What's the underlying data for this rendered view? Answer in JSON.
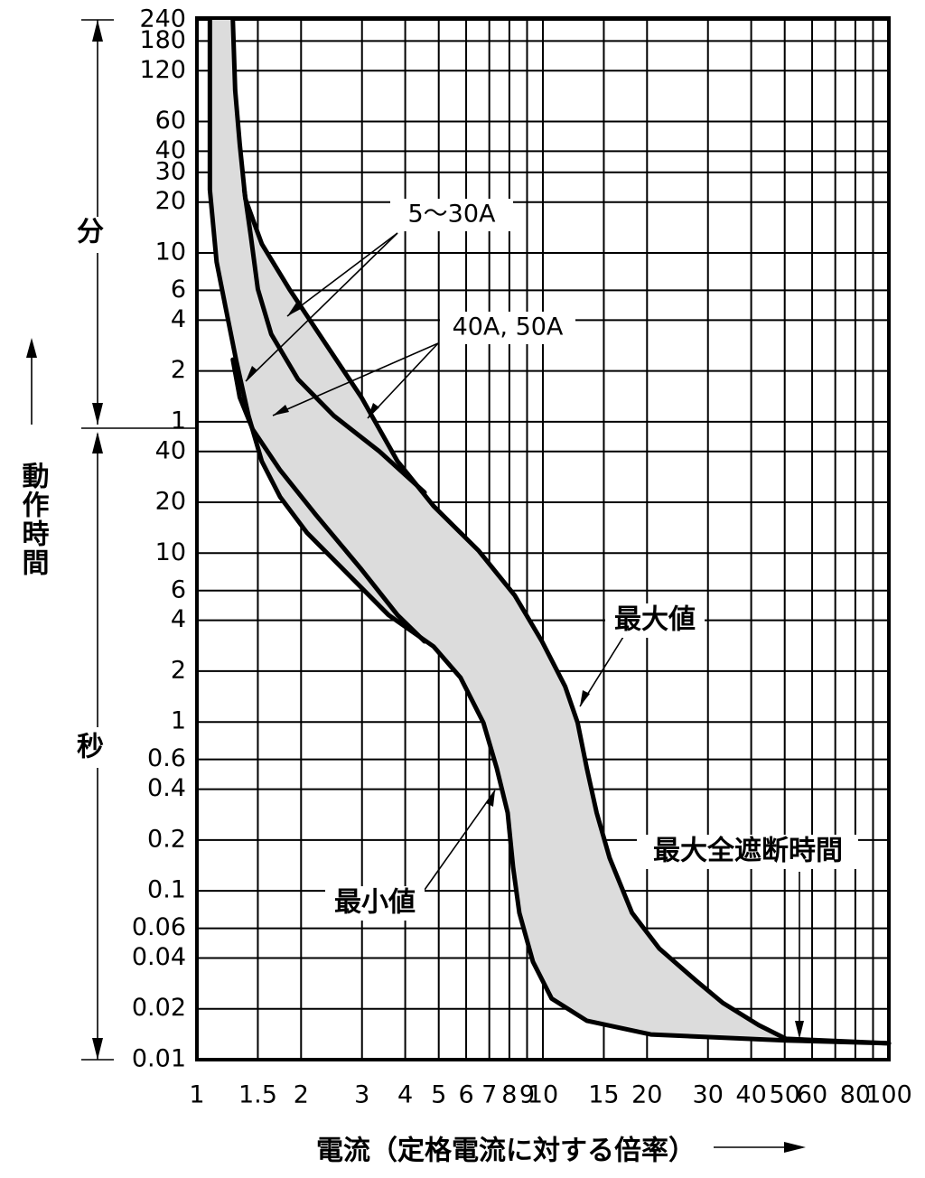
{
  "chart_data": {
    "type": "line",
    "xlabel": "電流（定格電流に対する倍率）",
    "ylabel": "動作時間",
    "y_unit_labels": [
      "分",
      "秒"
    ],
    "annotations": [
      "5〜30A",
      "40A, 50A",
      "最大値",
      "最小値",
      "最大全遮断時間"
    ],
    "xlog": true,
    "ylog": true,
    "grid": true,
    "xlim": [
      1,
      100
    ],
    "ylim": [
      0.01,
      14400
    ],
    "xticks": [
      1,
      1.5,
      2,
      3,
      4,
      5,
      6,
      7,
      8,
      9,
      10,
      15,
      20,
      30,
      40,
      50,
      60,
      80,
      100
    ],
    "x_minor_ticks": [
      70,
      90
    ],
    "yticks": [
      {
        "value": 14400,
        "label": "240"
      },
      {
        "value": 10800,
        "label": "180"
      },
      {
        "value": 7200,
        "label": "120"
      },
      {
        "value": 3600,
        "label": "60"
      },
      {
        "value": 2400,
        "label": "40"
      },
      {
        "value": 1800,
        "label": "30"
      },
      {
        "value": 1200,
        "label": "20"
      },
      {
        "value": 600,
        "label": "10"
      },
      {
        "value": 360,
        "label": "6"
      },
      {
        "value": 240,
        "label": "4"
      },
      {
        "value": 120,
        "label": "2"
      },
      {
        "value": 60,
        "label": "1"
      },
      40,
      20,
      10,
      6,
      4,
      2,
      1,
      0.6,
      0.4,
      0.2,
      0.1,
      0.06,
      0.04,
      0.02,
      0.01
    ],
    "band_color": "#dcdcdc",
    "series": [
      {
        "color": "#000000",
        "x": [
          1.09,
          1.09,
          1.14,
          1.21,
          1.3,
          1.41,
          1.54,
          1.74,
          2.08,
          2.65,
          3.58,
          4.83,
          5.78,
          6.73,
          7.36,
          7.91,
          8.2,
          8.55,
          9.36,
          10.6,
          13.4,
          20.5,
          50.4,
          100
        ],
        "values": [
          14400,
          1420,
          530,
          286,
          137,
          65,
          35,
          21.5,
          13.2,
          8.0,
          4.3,
          2.8,
          1.83,
          0.99,
          0.53,
          0.29,
          0.138,
          0.074,
          0.038,
          0.023,
          0.017,
          0.0141,
          0.013,
          0.0125
        ]
      },
      {
        "color": "#000000",
        "x": [
          1.27,
          1.29,
          1.33,
          1.38,
          1.54,
          1.85,
          2.35,
          2.99,
          3.8,
          4.83,
          6.53,
          8.3,
          9.94,
          11.6,
          12.6,
          13.4,
          14.3,
          15.6,
          18.1,
          21.7,
          27.6,
          33.1,
          42.1,
          50.4,
          100
        ],
        "values": [
          14400,
          5510,
          2630,
          1256,
          678,
          366,
          175,
          83.6,
          35,
          19,
          10.3,
          5.6,
          3.0,
          1.62,
          0.99,
          0.53,
          0.29,
          0.156,
          0.074,
          0.0455,
          0.0296,
          0.0217,
          0.016,
          0.0133,
          0.0125
        ]
      },
      {
        "color": "#000000",
        "x": [
          1.37,
          1.43,
          1.5,
          1.64,
          1.96,
          2.49,
          3.37,
          4.55
        ],
        "values": [
          1420,
          767,
          366,
          198,
          107,
          65,
          40,
          22.9
        ]
      },
      {
        "color": "#000000",
        "x": [
          1.27,
          1.33,
          1.45,
          1.74,
          2.21,
          2.99,
          3.8,
          4.55
        ],
        "values": [
          140,
          83.6,
          54,
          31,
          16.8,
          8.0,
          4.3,
          3.0
        ]
      }
    ]
  }
}
